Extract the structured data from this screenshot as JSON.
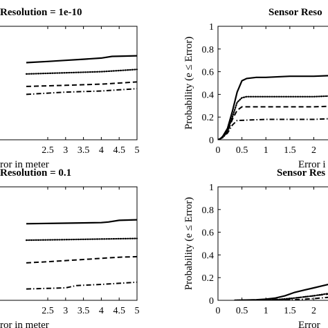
{
  "chart_data": [
    {
      "type": "line",
      "title": "Resolution = 1e-10",
      "xlabel": "ror in meter",
      "ylabel": "",
      "xlim": [
        0,
        5
      ],
      "ylim": [
        0,
        1
      ],
      "xticks": [
        "2.5",
        "3",
        "3.5",
        "4",
        "4.5",
        "5"
      ],
      "yticks": [],
      "series": [
        {
          "style": "solid",
          "x": [
            1.9,
            2.5,
            3.0,
            3.5,
            4.0,
            4.3,
            5.0
          ],
          "y": [
            0.68,
            0.69,
            0.7,
            0.71,
            0.72,
            0.735,
            0.74
          ]
        },
        {
          "style": "dotted",
          "x": [
            1.9,
            3.0,
            4.0,
            4.5,
            5.0
          ],
          "y": [
            0.58,
            0.59,
            0.6,
            0.61,
            0.62
          ]
        },
        {
          "style": "dashed",
          "x": [
            1.9,
            3.0,
            4.0,
            4.5,
            5.0
          ],
          "y": [
            0.47,
            0.48,
            0.49,
            0.5,
            0.51
          ]
        },
        {
          "style": "dashdot",
          "x": [
            1.9,
            3.0,
            4.0,
            4.5,
            5.0
          ],
          "y": [
            0.4,
            0.42,
            0.43,
            0.44,
            0.45
          ]
        }
      ]
    },
    {
      "type": "line",
      "title": "Sensor Reso",
      "xlabel": "Error i",
      "ylabel": "Probability (e ≤ Error)",
      "xlim": [
        0,
        2.6
      ],
      "ylim": [
        0,
        1
      ],
      "xticks": [
        "0",
        "0.5",
        "1",
        "1.5",
        "2"
      ],
      "yticks": [
        "0",
        "0.2",
        "0.4",
        "0.6",
        "0.8",
        "1"
      ],
      "series": [
        {
          "style": "solid",
          "x": [
            0,
            0.05,
            0.1,
            0.2,
            0.3,
            0.4,
            0.5,
            0.6,
            0.8,
            1.0,
            1.5,
            2.0,
            2.6
          ],
          "y": [
            0,
            0.01,
            0.03,
            0.1,
            0.25,
            0.42,
            0.52,
            0.54,
            0.55,
            0.55,
            0.56,
            0.56,
            0.57
          ]
        },
        {
          "style": "dotted",
          "x": [
            0,
            0.1,
            0.2,
            0.3,
            0.4,
            0.5,
            0.6,
            1.0,
            2.0,
            2.6
          ],
          "y": [
            0,
            0.02,
            0.08,
            0.2,
            0.33,
            0.37,
            0.38,
            0.38,
            0.38,
            0.39
          ]
        },
        {
          "style": "dashed",
          "x": [
            0,
            0.1,
            0.2,
            0.3,
            0.4,
            0.5,
            1.0,
            2.0,
            2.6
          ],
          "y": [
            0,
            0.02,
            0.07,
            0.18,
            0.26,
            0.29,
            0.29,
            0.29,
            0.3
          ]
        },
        {
          "style": "dashdot",
          "x": [
            0,
            0.1,
            0.2,
            0.3,
            0.4,
            1.0,
            2.0,
            2.6
          ],
          "y": [
            0,
            0.02,
            0.06,
            0.13,
            0.17,
            0.18,
            0.18,
            0.19
          ]
        }
      ]
    },
    {
      "type": "line",
      "title": "Resolution = 0.1",
      "xlabel": "ror in meter",
      "ylabel": "",
      "xlim": [
        0,
        5
      ],
      "ylim": [
        0,
        1
      ],
      "xticks": [
        "2.5",
        "3",
        "3.5",
        "4",
        "4.5",
        "5"
      ],
      "yticks": [],
      "series": [
        {
          "style": "solid",
          "x": [
            1.9,
            3.0,
            4.0,
            4.2,
            4.5,
            5.0
          ],
          "y": [
            0.675,
            0.68,
            0.685,
            0.69,
            0.705,
            0.71
          ]
        },
        {
          "style": "dotted",
          "x": [
            1.9,
            3.0,
            4.0,
            5.0
          ],
          "y": [
            0.53,
            0.535,
            0.54,
            0.545
          ]
        },
        {
          "style": "dashed",
          "x": [
            1.9,
            2.5,
            3.5,
            4.0,
            4.5,
            5.0
          ],
          "y": [
            0.33,
            0.34,
            0.36,
            0.37,
            0.38,
            0.385
          ]
        },
        {
          "style": "dashdot",
          "x": [
            1.9,
            3.0,
            3.3,
            4.0,
            4.5,
            5.0
          ],
          "y": [
            0.1,
            0.11,
            0.13,
            0.14,
            0.15,
            0.16
          ]
        }
      ]
    },
    {
      "type": "line",
      "title": "Sensor Res",
      "xlabel": "Error",
      "ylabel": "Probability (e ≤ Error)",
      "xlim": [
        0,
        2.6
      ],
      "ylim": [
        0,
        1
      ],
      "xticks": [
        "0",
        "0.5",
        "1",
        "1.5",
        "2"
      ],
      "yticks": [
        "0",
        "0.2",
        "0.4",
        "0.6",
        "0.8",
        "1"
      ],
      "series": [
        {
          "style": "solid",
          "x": [
            0.35,
            0.8,
            1.0,
            1.2,
            1.4,
            1.6,
            1.8,
            2.0,
            2.2,
            2.4,
            2.6
          ],
          "y": [
            0.0,
            0.005,
            0.01,
            0.02,
            0.04,
            0.07,
            0.09,
            0.11,
            0.13,
            0.15,
            0.17
          ]
        },
        {
          "style": "dotted",
          "x": [
            0.35,
            1.2,
            1.6,
            2.0,
            2.3,
            2.6
          ],
          "y": [
            0.0,
            0.005,
            0.02,
            0.04,
            0.06,
            0.08
          ]
        },
        {
          "style": "dashed",
          "x": [
            0.35,
            1.4,
            1.8,
            2.2,
            2.6
          ],
          "y": [
            0.0,
            0.01,
            0.03,
            0.05,
            0.07
          ]
        },
        {
          "style": "dashdot",
          "x": [
            0.35,
            1.6,
            2.0,
            2.4,
            2.6
          ],
          "y": [
            0.0,
            0.005,
            0.015,
            0.03,
            0.04
          ]
        }
      ]
    }
  ]
}
